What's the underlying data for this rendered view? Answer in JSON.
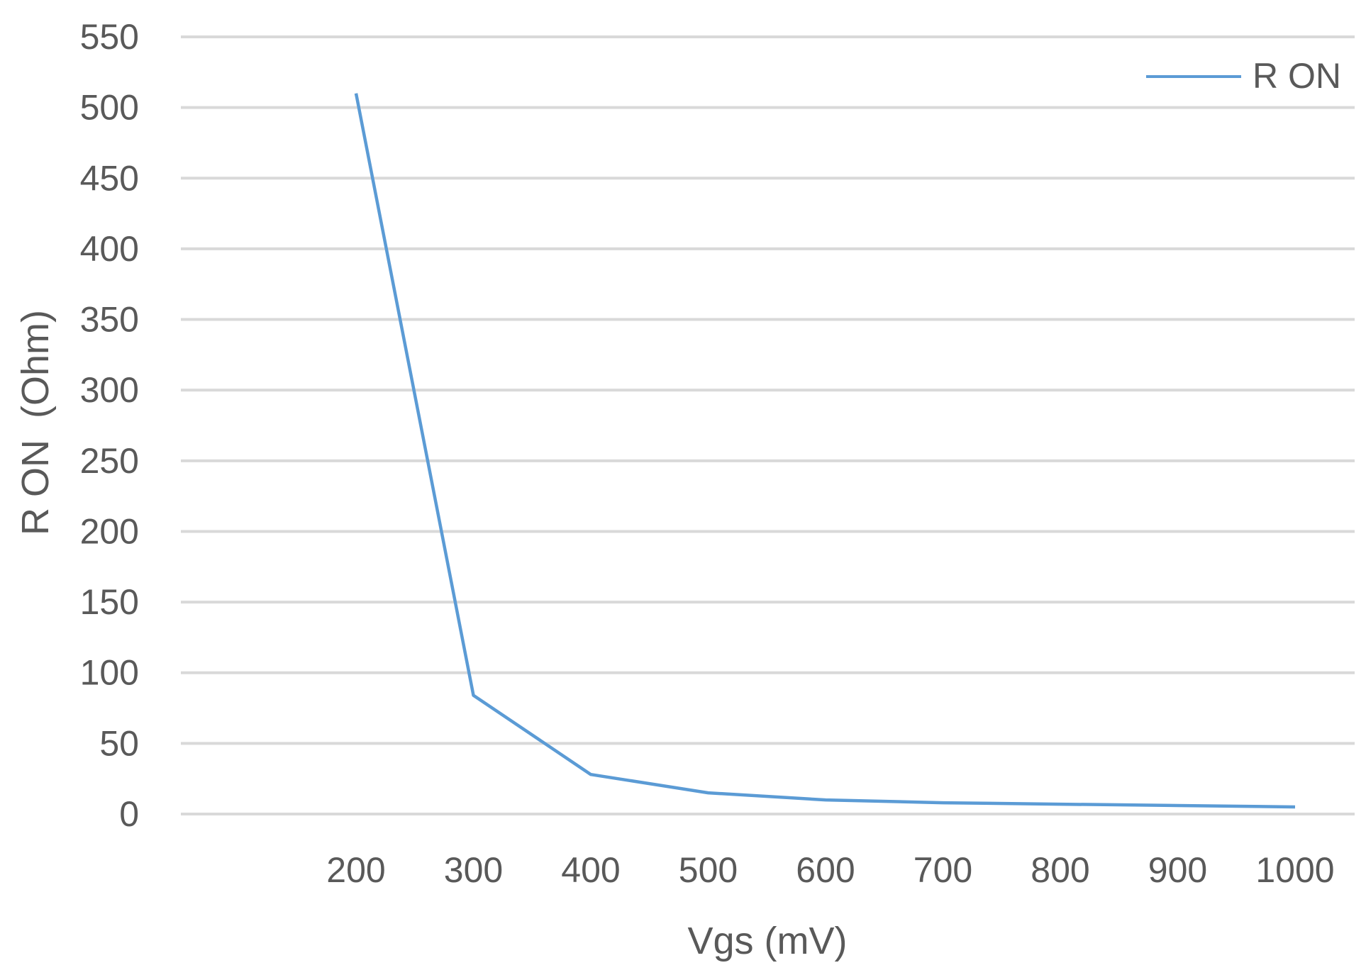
{
  "chart_data": {
    "type": "line",
    "title": "",
    "xlabel": "Vgs (mV)",
    "ylabel": "R ON  (Ohm)",
    "x": [
      200,
      300,
      400,
      500,
      600,
      700,
      800,
      900,
      1000
    ],
    "x_ticks": [
      "200",
      "300",
      "400",
      "500",
      "600",
      "700",
      "800",
      "900",
      "1000"
    ],
    "y_ticks": [
      "0",
      "50",
      "100",
      "150",
      "200",
      "250",
      "300",
      "350",
      "400",
      "450",
      "500",
      "550"
    ],
    "ylim": [
      0,
      550
    ],
    "grid": true,
    "legend_position": "top-right",
    "series": [
      {
        "name": "R ON",
        "color": "#5b9bd5",
        "values": [
          510,
          84,
          28,
          15,
          10,
          8,
          7,
          6,
          5
        ]
      }
    ]
  }
}
